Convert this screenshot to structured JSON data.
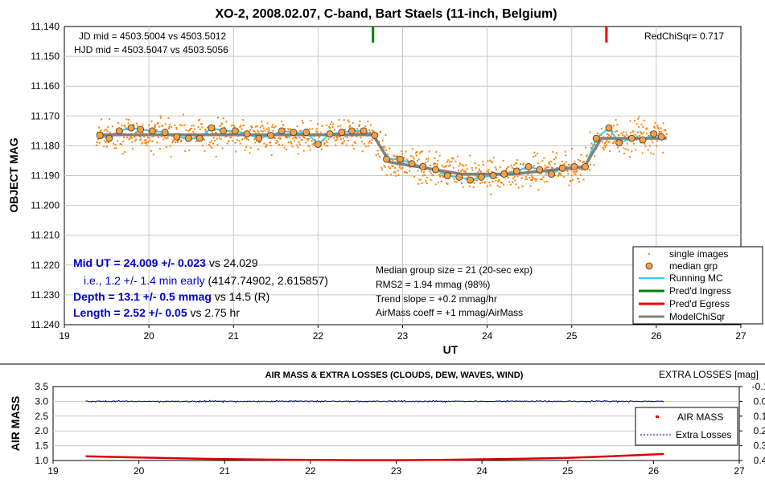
{
  "chart_data": [
    {
      "type": "scatter",
      "title": "XO-2, 2008.02.07, C-band, Bart Staels (11-inch, Belgium)",
      "xlabel": "UT",
      "ylabel": "OBJECT MAG",
      "xlim": [
        19,
        27
      ],
      "ylim": [
        11.14,
        11.24
      ],
      "y_inverted": true,
      "x_ticks": [
        "19",
        "20",
        "21",
        "22",
        "23",
        "24",
        "25",
        "26",
        "27"
      ],
      "y_ticks": [
        "11.140",
        "11.150",
        "11.160",
        "11.170",
        "11.180",
        "11.190",
        "11.200",
        "11.210",
        "11.220",
        "11.230",
        "11.240"
      ],
      "grid": true,
      "legend_position": "bottom-right",
      "annotations": {
        "jd": "JD mid = 4503.5004 vs 4503.5012",
        "hjd": "HJD mid = 4503.5047 vs 4503.5056",
        "redchi": "RedChiSqr= 0.717",
        "mid_bold": "Mid UT = 24.009 +/- 0.023",
        "mid_rest": " vs 24.029",
        "ie_blue": "i.e., 1.2 +/- 1.4 min early",
        "ie_rest": " (4147.74902, 2.615857)",
        "depth_bold": "Depth = 13.1 +/- 0.5 mmag",
        "depth_rest": " vs 14.5 (R)",
        "length_bold": "Length = 2.52 +/- 0.05",
        "length_rest": " vs 2.75 hr",
        "stats1": "Median group size = 21 (20-sec exp)",
        "stats2": "RMS2 = 1.94 mmag (98%)",
        "stats3": "Trend slope = +0.2 mmag/hr",
        "stats4": "AirMass coeff = +1 mmag/AirMass"
      },
      "ingress_ut": 22.65,
      "egress_ut": 25.41,
      "series": [
        {
          "name": "single images",
          "color": "#ff8000",
          "scatter_sigma": 0.0045,
          "ut_range": [
            19.38,
            26.12
          ]
        },
        {
          "name": "median grp",
          "color": "#ffa040",
          "x": [
            19.42,
            19.53,
            19.65,
            19.79,
            19.9,
            20.04,
            20.19,
            20.33,
            20.47,
            20.6,
            20.74,
            20.88,
            21.02,
            21.16,
            21.3,
            21.44,
            21.57,
            21.71,
            21.86,
            22.0,
            22.14,
            22.28,
            22.4,
            22.54,
            22.67,
            22.81,
            22.97,
            23.11,
            23.24,
            23.39,
            23.53,
            23.67,
            23.8,
            23.93,
            24.07,
            24.2,
            24.35,
            24.49,
            24.62,
            24.76,
            24.89,
            25.03,
            25.16,
            25.29,
            25.44,
            25.56,
            25.71,
            25.84,
            25.97,
            26.06
          ],
          "y": [
            11.1765,
            11.1775,
            11.175,
            11.174,
            11.1745,
            11.175,
            11.1755,
            11.177,
            11.1775,
            11.1775,
            11.174,
            11.175,
            11.175,
            11.176,
            11.1775,
            11.1765,
            11.175,
            11.1755,
            11.1755,
            11.1795,
            11.176,
            11.1755,
            11.175,
            11.175,
            11.1765,
            11.1845,
            11.1845,
            11.186,
            11.187,
            11.188,
            11.19,
            11.1905,
            11.1915,
            11.1905,
            11.19,
            11.1895,
            11.1885,
            11.187,
            11.188,
            11.1895,
            11.1875,
            11.187,
            11.187,
            11.1775,
            11.174,
            11.179,
            11.1775,
            11.178,
            11.176,
            11.177
          ]
        },
        {
          "name": "Running MC",
          "color": "#33ccee"
        },
        {
          "name": "Pred'd Ingress",
          "color": "#008000"
        },
        {
          "name": "Pred'd Egress",
          "color": "#ee0000"
        },
        {
          "name": "ModelChiSqr",
          "color": "#808080",
          "x": [
            19.4,
            22.65,
            22.85,
            23.7,
            24.3,
            25.15,
            25.35,
            26.12
          ],
          "y": [
            11.1763,
            11.1763,
            11.1855,
            11.1895,
            11.1895,
            11.187,
            11.1775,
            11.1775
          ]
        }
      ]
    },
    {
      "type": "line",
      "title": "AIR MASS & EXTRA LOSSES (CLOUDS, DEW, WAVES, WIND)",
      "ylabel": "AIR MASS",
      "y2label": "EXTRA LOSSES [mag]",
      "xlim": [
        19,
        27
      ],
      "ylim": [
        1.0,
        3.5
      ],
      "y2lim": [
        -0.1,
        0.4
      ],
      "x_ticks": [
        "19",
        "20",
        "21",
        "22",
        "23",
        "24",
        "25",
        "26",
        "27"
      ],
      "y_ticks": [
        "1.0",
        "1.5",
        "2.0",
        "2.5",
        "3.0",
        "3.5"
      ],
      "y2_ticks": [
        "-0.1",
        "0.0",
        "0.1",
        "0.2",
        "0.3",
        "0.4"
      ],
      "legend_position": "right",
      "series": [
        {
          "name": "AIR MASS",
          "color": "#dd0000",
          "x": [
            19.38,
            20.0,
            20.5,
            21.0,
            21.5,
            22.0,
            22.5,
            23.0,
            23.5,
            24.0,
            24.5,
            25.0,
            25.5,
            26.12
          ],
          "y": [
            1.14,
            1.1,
            1.07,
            1.05,
            1.03,
            1.02,
            1.01,
            1.01,
            1.02,
            1.04,
            1.06,
            1.09,
            1.14,
            1.22
          ]
        },
        {
          "name": "Extra Losses",
          "color": "#0000aa",
          "value": 0.0,
          "noise": 0.004,
          "ut_range": [
            19.38,
            26.12
          ]
        }
      ]
    }
  ]
}
